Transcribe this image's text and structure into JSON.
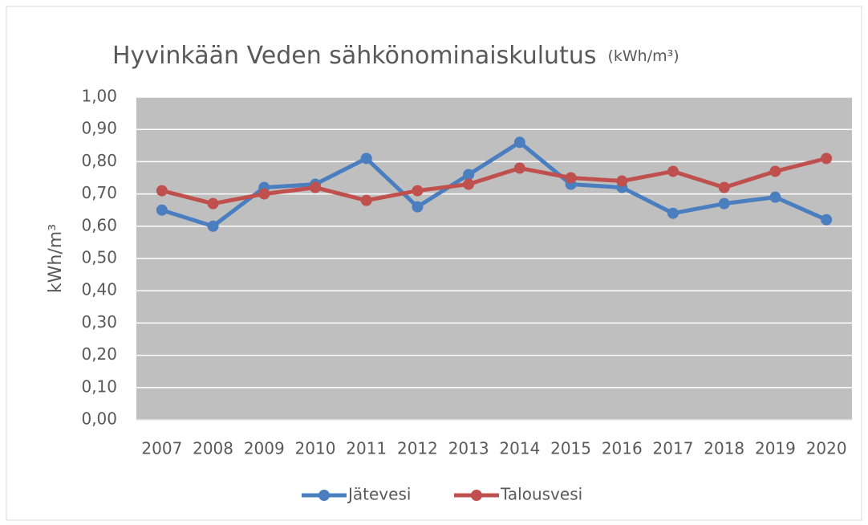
{
  "chart_data": {
    "type": "line",
    "title": "Hyvinkään Veden sähkönominaiskulutus",
    "subtitle": "(kWh/m³)",
    "y_label": "kWh/m³",
    "categories": [
      "2007",
      "2008",
      "2009",
      "2010",
      "2011",
      "2012",
      "2013",
      "2014",
      "2015",
      "2016",
      "2017",
      "2018",
      "2019",
      "2020"
    ],
    "series": [
      {
        "name": "Jätevesi",
        "color": "#4a7ebf",
        "values": [
          0.65,
          0.6,
          0.72,
          0.73,
          0.81,
          0.66,
          0.76,
          0.86,
          0.73,
          0.72,
          0.64,
          0.67,
          0.69,
          0.62
        ]
      },
      {
        "name": "Talousvesi",
        "color": "#c0504d",
        "values": [
          0.71,
          0.67,
          0.7,
          0.72,
          0.68,
          0.71,
          0.73,
          0.78,
          0.75,
          0.74,
          0.77,
          0.72,
          0.77,
          0.81
        ]
      }
    ],
    "ylim": [
      0,
      1
    ],
    "yticks": [
      {
        "value": 0,
        "label": "0,00"
      },
      {
        "value": 0.1,
        "label": "0,10"
      },
      {
        "value": 0.2,
        "label": "0,20"
      },
      {
        "value": 0.3,
        "label": "0,30"
      },
      {
        "value": 0.4,
        "label": "0,40"
      },
      {
        "value": 0.5,
        "label": "0,50"
      },
      {
        "value": 0.6,
        "label": "0,60"
      },
      {
        "value": 0.7,
        "label": "0,70"
      },
      {
        "value": 0.8,
        "label": "0,80"
      },
      {
        "value": 0.9,
        "label": "0,90"
      },
      {
        "value": 1,
        "label": "1,00"
      }
    ],
    "grid": true,
    "legend": "bottom"
  }
}
